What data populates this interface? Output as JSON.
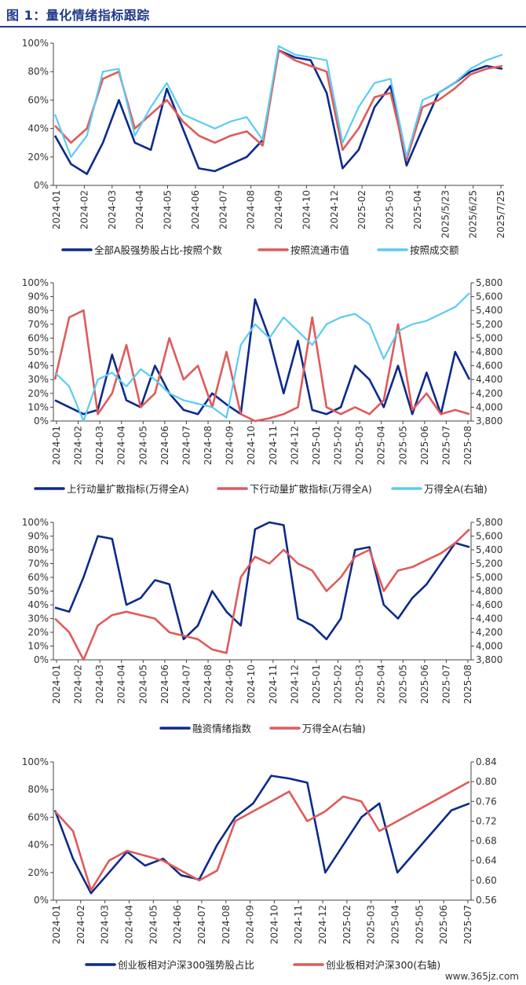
{
  "title": "图 1：量化情绪指标跟踪",
  "watermark": "www.365jz.com",
  "colors": {
    "navy": "#0c2b8a",
    "red": "#e05a5a",
    "cyan": "#5ccbf2"
  },
  "chart_data": [
    {
      "type": "line",
      "ylim": [
        0,
        100
      ],
      "yticks": [
        "0%",
        "20%",
        "40%",
        "60%",
        "80%",
        "100%"
      ],
      "xticks": [
        "2024-01",
        "2024-02",
        "2024-03",
        "2024-04",
        "2024-05",
        "2024-06",
        "2024-07",
        "2024-08",
        "2024-09",
        "2024-10",
        "2024-12",
        "2025-02",
        "2025-03",
        "2025-04",
        "2025/5/23",
        "2025/6/25",
        "2025/7/25"
      ],
      "series": [
        {
          "name": "全部A股强势股占比-按照个数",
          "axis": "left",
          "color": "navy",
          "values": [
            35,
            15,
            8,
            30,
            60,
            30,
            25,
            68,
            40,
            12,
            10,
            15,
            20,
            32,
            95,
            90,
            88,
            65,
            12,
            25,
            55,
            70,
            14,
            40,
            65,
            72,
            80,
            84,
            82
          ]
        },
        {
          "name": "按照流通市值",
          "axis": "left",
          "color": "red",
          "values": [
            42,
            30,
            40,
            75,
            80,
            40,
            50,
            60,
            45,
            35,
            30,
            35,
            38,
            28,
            95,
            88,
            84,
            80,
            25,
            40,
            62,
            65,
            18,
            55,
            60,
            68,
            78,
            82,
            84
          ]
        },
        {
          "name": "按照成交额",
          "axis": "left",
          "color": "cyan",
          "values": [
            50,
            20,
            35,
            80,
            82,
            35,
            55,
            72,
            50,
            45,
            40,
            45,
            48,
            32,
            98,
            92,
            90,
            88,
            30,
            55,
            72,
            75,
            20,
            60,
            65,
            72,
            82,
            88,
            92
          ]
        }
      ]
    },
    {
      "type": "line",
      "ylim": [
        0,
        100
      ],
      "ylim_right": [
        3800,
        5800
      ],
      "yticks": [
        "0%",
        "10%",
        "20%",
        "30%",
        "40%",
        "50%",
        "60%",
        "70%",
        "80%",
        "90%",
        "100%"
      ],
      "yticks_right": [
        "3,800",
        "4,000",
        "4,200",
        "4,400",
        "4,600",
        "4,800",
        "5,000",
        "5,200",
        "5,400",
        "5,600",
        "5,800"
      ],
      "xticks": [
        "2024-01",
        "2024-02",
        "2024-03",
        "2024-04",
        "2024-05",
        "2024-06",
        "2024-07",
        "2024-08",
        "2024-09",
        "2024-10",
        "2024-11",
        "2024-12",
        "2025-01",
        "2025-02",
        "2025-03",
        "2025-04",
        "2025-05",
        "2025-06",
        "2025-07",
        "2025-08"
      ],
      "series": [
        {
          "name": "上行动量扩散指标(万得全A)",
          "axis": "left",
          "color": "navy",
          "values": [
            15,
            10,
            5,
            8,
            48,
            15,
            10,
            40,
            20,
            8,
            5,
            20,
            12,
            5,
            88,
            60,
            20,
            58,
            8,
            5,
            10,
            40,
            30,
            10,
            40,
            5,
            35,
            5,
            50,
            30
          ]
        },
        {
          "name": "下行动量扩散指标(万得全A)",
          "axis": "left",
          "color": "red",
          "values": [
            30,
            75,
            80,
            5,
            20,
            55,
            10,
            20,
            60,
            30,
            40,
            10,
            50,
            5,
            0,
            2,
            5,
            10,
            75,
            10,
            5,
            10,
            5,
            15,
            70,
            8,
            20,
            5,
            8,
            5
          ]
        },
        {
          "name": "万得全A(右轴)",
          "axis": "right",
          "color": "cyan",
          "values": [
            4500,
            4300,
            3800,
            4400,
            4500,
            4300,
            4550,
            4400,
            4200,
            4100,
            4050,
            4000,
            3850,
            4900,
            5200,
            5000,
            5300,
            5100,
            4900,
            5200,
            5300,
            5350,
            5200,
            4700,
            5100,
            5200,
            5250,
            5350,
            5450,
            5650
          ]
        }
      ]
    },
    {
      "type": "line",
      "ylim": [
        0,
        100
      ],
      "ylim_right": [
        3800,
        5800
      ],
      "yticks": [
        "0%",
        "10%",
        "20%",
        "30%",
        "40%",
        "50%",
        "60%",
        "70%",
        "80%",
        "90%",
        "100%"
      ],
      "yticks_right": [
        "3,800",
        "4,000",
        "4,200",
        "4,400",
        "4,600",
        "4,800",
        "5,000",
        "5,200",
        "5,400",
        "5,600",
        "5,800"
      ],
      "xticks": [
        "2024-01",
        "2024-02",
        "2024-03",
        "2024-04",
        "2024-05",
        "2024-06",
        "2024-07",
        "2024-08",
        "2024-09",
        "2024-10",
        "2024-11",
        "2024-12",
        "2025-01",
        "2025-02",
        "2025-03",
        "2025-04",
        "2025-05",
        "2025-06",
        "2025-07",
        "2025-08"
      ],
      "series": [
        {
          "name": "融资情绪指数",
          "axis": "left",
          "color": "navy",
          "values": [
            38,
            35,
            60,
            90,
            88,
            40,
            45,
            58,
            55,
            15,
            25,
            50,
            35,
            25,
            95,
            100,
            98,
            30,
            25,
            15,
            30,
            80,
            82,
            40,
            30,
            45,
            55,
            70,
            85,
            82
          ]
        },
        {
          "name": "万得全A(右轴)",
          "axis": "right",
          "color": "red",
          "values": [
            4400,
            4200,
            3800,
            4300,
            4450,
            4500,
            4450,
            4400,
            4200,
            4150,
            4100,
            3950,
            3900,
            5000,
            5300,
            5200,
            5400,
            5200,
            5100,
            4800,
            5000,
            5300,
            5400,
            4800,
            5100,
            5150,
            5250,
            5350,
            5500,
            5700
          ]
        }
      ]
    },
    {
      "type": "line",
      "ylim": [
        0,
        100
      ],
      "ylim_right": [
        0.56,
        0.84
      ],
      "yticks": [
        "0%",
        "20%",
        "40%",
        "60%",
        "80%",
        "100%"
      ],
      "yticks_right": [
        "0.56",
        "0.60",
        "0.64",
        "0.68",
        "0.72",
        "0.76",
        "0.80",
        "0.84"
      ],
      "xticks": [
        "2024-01",
        "2024-02",
        "2024-03",
        "2024-04",
        "2024-05",
        "2024-06",
        "2024-07",
        "2024-08",
        "2024-09",
        "2024-10",
        "2024-11",
        "2024-12",
        "2025-02",
        "2025-03",
        "2025-04",
        "2025-05",
        "2025-06",
        "2025-07"
      ],
      "series": [
        {
          "name": "创业板相对沪深300强势股占比",
          "axis": "left",
          "color": "navy",
          "values": [
            65,
            30,
            5,
            20,
            35,
            25,
            30,
            18,
            15,
            40,
            60,
            70,
            90,
            88,
            85,
            20,
            40,
            60,
            70,
            20,
            35,
            50,
            65,
            70
          ]
        },
        {
          "name": "创业板相对沪深300(右轴)",
          "axis": "right",
          "color": "red",
          "values": [
            0.74,
            0.7,
            0.58,
            0.64,
            0.66,
            0.65,
            0.64,
            0.62,
            0.6,
            0.62,
            0.72,
            0.74,
            0.76,
            0.78,
            0.72,
            0.74,
            0.77,
            0.76,
            0.7,
            0.72,
            0.74,
            0.76,
            0.78,
            0.8
          ]
        }
      ]
    }
  ]
}
